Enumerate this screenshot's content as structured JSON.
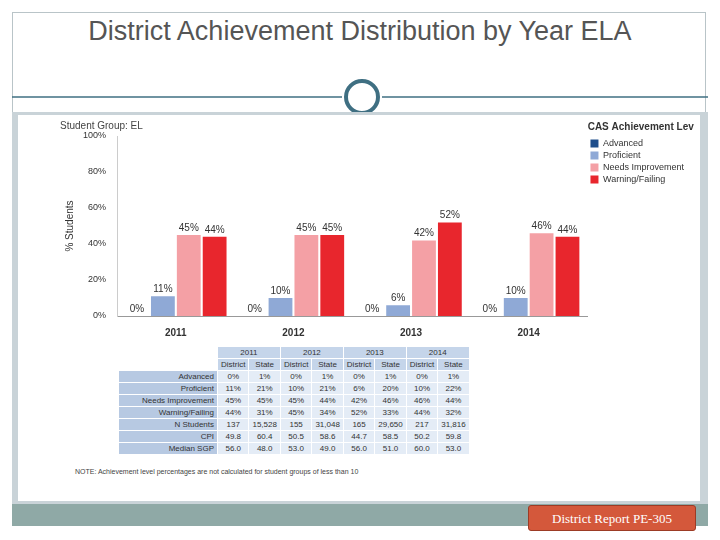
{
  "slide": {
    "title": "District Achievement Distribution by Year ELA",
    "badge": "District Report PE-305"
  },
  "chart_data": {
    "type": "bar",
    "title": "Student Group: EL",
    "y_label": "% Students",
    "categories": [
      "2011",
      "2012",
      "2013",
      "2014"
    ],
    "series": [
      {
        "name": "Advanced",
        "color": "#1f4e8c",
        "values": [
          0,
          0,
          0,
          0
        ],
        "value_labels": [
          "0%",
          "0%",
          "0%",
          "0%"
        ]
      },
      {
        "name": "Proficient",
        "color": "#8fa9d6",
        "values": [
          11,
          10,
          6,
          10
        ],
        "value_labels": [
          "11%",
          "10%",
          "6%",
          "10%"
        ]
      },
      {
        "name": "Needs Improvement",
        "color": "#f4a0a5",
        "values": [
          45,
          45,
          42,
          46
        ],
        "value_labels": [
          "45%",
          "45%",
          "42%",
          "46%"
        ]
      },
      {
        "name": "Warning/Failing",
        "color": "#e8262d",
        "values": [
          44,
          45,
          52,
          44
        ],
        "value_labels": [
          "44%",
          "45%",
          "52%",
          "44%"
        ]
      }
    ],
    "ylim": [
      0,
      100
    ],
    "yticks": [
      {
        "value": 0,
        "label": "0%"
      },
      {
        "value": 20,
        "label": "20%"
      },
      {
        "value": 40,
        "label": "40%"
      },
      {
        "value": 60,
        "label": "60%"
      },
      {
        "value": 80,
        "label": "80%"
      },
      {
        "value": 100,
        "label": "100%"
      }
    ],
    "grid": false,
    "legend": "right",
    "legend_title": "MCAS Achievement Level",
    "data_labels": true
  },
  "table": {
    "years": [
      "2011",
      "2012",
      "2013",
      "2014"
    ],
    "columns": [
      "District",
      "State"
    ],
    "rows": [
      {
        "label": "Advanced",
        "cells": [
          "0%",
          "1%",
          "0%",
          "1%",
          "0%",
          "1%",
          "0%",
          "1%"
        ]
      },
      {
        "label": "Proficient",
        "cells": [
          "11%",
          "21%",
          "10%",
          "21%",
          "6%",
          "20%",
          "10%",
          "22%"
        ]
      },
      {
        "label": "Needs Improvement",
        "cells": [
          "45%",
          "45%",
          "45%",
          "44%",
          "42%",
          "46%",
          "46%",
          "44%"
        ]
      },
      {
        "label": "Warning/Failing",
        "cells": [
          "44%",
          "31%",
          "45%",
          "34%",
          "52%",
          "33%",
          "44%",
          "32%"
        ]
      },
      {
        "label": "N Students",
        "cells": [
          "137",
          "15,528",
          "155",
          "31,048",
          "165",
          "29,650",
          "217",
          "31,816"
        ]
      },
      {
        "label": "CPI",
        "cells": [
          "49.8",
          "60.4",
          "50.5",
          "58.6",
          "44.7",
          "58.5",
          "50.2",
          "59.8"
        ]
      },
      {
        "label": "Median SGP",
        "cells": [
          "56.0",
          "48.0",
          "53.0",
          "49.0",
          "56.0",
          "51.0",
          "60.0",
          "53.0"
        ]
      }
    ]
  },
  "note": "NOTE: Achievement level percentages are not calculated for student groups of less than 10"
}
